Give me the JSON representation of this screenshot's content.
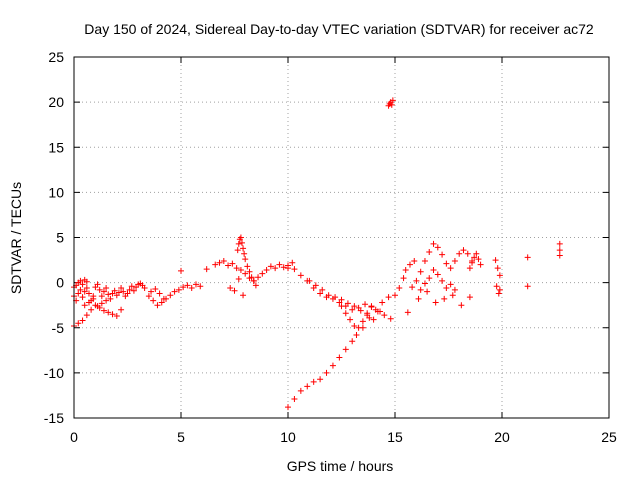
{
  "chart_data": {
    "type": "scatter",
    "title": "Day 150 of 2024, Sidereal Day-to-day VTEC variation (SDTVAR) for receiver ac72",
    "xlabel": "GPS time / hours",
    "ylabel": "SDTVAR / TECUs",
    "xlim": [
      0,
      25
    ],
    "ylim": [
      -15,
      25
    ],
    "xticks": [
      "0",
      "5",
      "10",
      "15",
      "20",
      "25"
    ],
    "yticks": [
      "-15",
      "-10",
      "-5",
      "0",
      "5",
      "10",
      "15",
      "20",
      "25"
    ],
    "grid": true,
    "marker": "+",
    "color": "#ff0000",
    "series": [
      {
        "name": "SDTVAR",
        "x": [
          0.0,
          0.1,
          0.2,
          0.3,
          0.4,
          0.5,
          0.6,
          0.7,
          0.8,
          0.9,
          1.0,
          1.1,
          1.2,
          1.3,
          1.4,
          1.5,
          1.6,
          1.7,
          1.8,
          1.9,
          2.0,
          2.1,
          2.2,
          2.3,
          2.4,
          2.5,
          2.6,
          2.7,
          2.8,
          2.9,
          3.0,
          3.1,
          3.2,
          3.3,
          0.0,
          0.2,
          0.4,
          0.6,
          0.8,
          1.0,
          1.2,
          1.4,
          1.6,
          1.8,
          2.0,
          2.2,
          0.0,
          0.1,
          0.2,
          0.3,
          0.4,
          0.5,
          0.6,
          0.5,
          0.7,
          0.9,
          1.1,
          1.3,
          1.5,
          3.5,
          3.7,
          3.9,
          4.1,
          4.3,
          4.5,
          4.7,
          4.9,
          5.1,
          5.3,
          5.5,
          5.7,
          5.9,
          3.6,
          3.8,
          4.0,
          4.2,
          5.0,
          6.2,
          6.6,
          6.8,
          7.0,
          7.2,
          7.4,
          7.6,
          7.8,
          8.0,
          8.2,
          8.4,
          8.6,
          8.8,
          9.0,
          9.2,
          9.4,
          9.6,
          9.8,
          10.0,
          10.2,
          7.65,
          7.7,
          7.75,
          7.8,
          7.85,
          7.9,
          7.95,
          8.0,
          8.1,
          8.2,
          8.3,
          8.4,
          8.5,
          7.3,
          7.5,
          7.7,
          7.9,
          10.0,
          10.3,
          10.6,
          10.9,
          11.2,
          11.5,
          11.8,
          12.1,
          12.4,
          12.7,
          13.0,
          13.3,
          13.6,
          13.9,
          14.2,
          14.5,
          14.8,
          10.0,
          10.3,
          10.6,
          10.9,
          11.2,
          11.5,
          11.8,
          12.1,
          12.4,
          12.7,
          13.0,
          13.2,
          13.5,
          13.8,
          14.1,
          14.4,
          14.7,
          11.0,
          11.3,
          11.6,
          11.9,
          12.2,
          12.5,
          12.8,
          13.1,
          13.4,
          13.7,
          14.0,
          14.3,
          12.5,
          12.7,
          12.9,
          13.1,
          13.3,
          13.5,
          13.7,
          13.9,
          14.7,
          14.75,
          14.8,
          14.85,
          14.9,
          15.0,
          15.2,
          15.4,
          15.5,
          15.7,
          15.9,
          15.8,
          16.0,
          16.2,
          16.4,
          16.6,
          16.8,
          17.0,
          17.2,
          17.4,
          17.6,
          17.8,
          18.0,
          18.2,
          18.4,
          18.6,
          16.2,
          16.4,
          16.6,
          16.8,
          17.0,
          17.2,
          17.4,
          17.6,
          17.8,
          16.5,
          16.9,
          17.3,
          17.7,
          18.1,
          18.5,
          15.6,
          16.1,
          18.5,
          18.6,
          18.7,
          18.8,
          18.9,
          19.0,
          19.7,
          19.8,
          19.9,
          19.75,
          19.85,
          19.9,
          21.2,
          21.2,
          22.7,
          22.7,
          22.7
        ],
        "y": [
          -1.5,
          -2.0,
          -1.2,
          -0.8,
          -1.6,
          -1.0,
          -0.6,
          -1.2,
          -2.0,
          -1.5,
          -0.5,
          -0.2,
          -0.8,
          -1.5,
          -1.0,
          -0.6,
          -1.3,
          -1.8,
          -1.2,
          -0.9,
          -1.4,
          -1.1,
          -0.6,
          -1.0,
          -1.5,
          -1.2,
          -0.8,
          -0.4,
          -0.9,
          -0.5,
          -0.2,
          -0.1,
          -0.3,
          -0.6,
          -4.8,
          -4.5,
          -4.2,
          -3.6,
          -3.0,
          -2.5,
          -2.8,
          -3.1,
          -3.3,
          -3.5,
          -3.7,
          -3.0,
          -0.5,
          -0.3,
          0.0,
          0.2,
          -0.2,
          0.3,
          0.1,
          -2.5,
          -2.2,
          -1.8,
          -2.6,
          -2.3,
          -2.0,
          -1.5,
          -2.0,
          -2.5,
          -2.2,
          -1.8,
          -1.4,
          -1.0,
          -0.8,
          -0.5,
          -0.3,
          -0.6,
          -0.2,
          -0.4,
          -1.0,
          -0.7,
          -1.2,
          -1.8,
          1.3,
          1.5,
          2.0,
          2.2,
          2.4,
          1.9,
          2.1,
          1.6,
          1.4,
          1.0,
          0.5,
          0.2,
          0.6,
          1.0,
          1.4,
          1.8,
          1.6,
          2.0,
          1.7,
          1.9,
          2.2,
          3.6,
          4.3,
          4.8,
          5.0,
          4.4,
          3.8,
          3.2,
          2.6,
          1.8,
          1.2,
          0.6,
          0.2,
          -0.3,
          -0.6,
          -0.9,
          0.4,
          -1.4,
          1.6,
          1.5,
          0.8,
          0.2,
          -0.6,
          -1.2,
          -1.6,
          -1.8,
          -2.2,
          -2.6,
          -3.0,
          -2.8,
          -2.4,
          -2.6,
          -3.2,
          -3.6,
          -4.0,
          -13.8,
          -12.9,
          -12.0,
          -11.5,
          -11.0,
          -10.7,
          -10.0,
          -9.2,
          -8.3,
          -7.4,
          -6.5,
          -5.8,
          -5.0,
          -3.9,
          -3.0,
          -2.2,
          -1.6,
          0.2,
          -0.3,
          -0.8,
          -1.4,
          -1.6,
          -1.9,
          -2.3,
          -2.6,
          -3.1,
          -3.6,
          -4.1,
          -3.2,
          -2.6,
          -3.4,
          -4.1,
          -4.8,
          -5.0,
          -4.3,
          -3.4,
          -2.7,
          19.6,
          19.8,
          20.0,
          19.7,
          20.2,
          -1.4,
          -0.6,
          0.5,
          1.4,
          2.0,
          2.4,
          -0.5,
          0.2,
          1.2,
          2.4,
          3.4,
          4.3,
          3.9,
          3.1,
          2.1,
          1.6,
          2.4,
          3.2,
          3.6,
          3.2,
          2.4,
          -0.8,
          -0.1,
          0.5,
          1.4,
          0.9,
          0.2,
          -0.6,
          -0.2,
          -0.8,
          -1.0,
          -2.2,
          -1.8,
          -1.4,
          -2.5,
          -1.6,
          -3.3,
          -1.8,
          1.6,
          2.2,
          2.8,
          3.2,
          2.6,
          2.0,
          2.5,
          1.6,
          0.8,
          -0.4,
          -1.2,
          -0.8,
          2.8,
          -0.4,
          4.3,
          3.6,
          3.0
        ]
      }
    ]
  }
}
